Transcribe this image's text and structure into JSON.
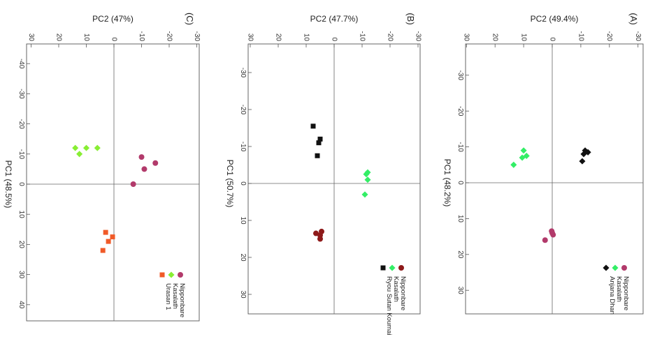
{
  "figure": {
    "panels": [
      {
        "panel_label": "(A)",
        "xlabel": "PC1 (48.2%)",
        "ylabel": "PC2 (49.4%)",
        "x_ticks": [
          -30,
          -20,
          -10,
          0,
          10,
          20,
          30
        ],
        "y_ticks": [
          -30,
          -20,
          -10,
          0,
          10,
          20,
          30
        ],
        "legend": [
          {
            "label": "Nipponbare",
            "color": "#b23a6b",
            "marker": "circle"
          },
          {
            "label": "Kasalath",
            "color": "#33ee66",
            "marker": "diamond"
          },
          {
            "label": "Anjana Dhan",
            "color": "#111111",
            "marker": "diamond"
          }
        ]
      },
      {
        "panel_label": "(B)",
        "xlabel": "PC1 (50.7%)",
        "ylabel": "PC2 (47.7%)",
        "x_ticks": [
          -30,
          -20,
          -10,
          0,
          10,
          20,
          30
        ],
        "y_ticks": [
          -30,
          -20,
          -10,
          0,
          10,
          20,
          30
        ],
        "legend": [
          {
            "label": "Nipponbare",
            "color": "#8e1a1a",
            "marker": "circle"
          },
          {
            "label": "Kasalath",
            "color": "#33ee66",
            "marker": "diamond"
          },
          {
            "label": "Ryou Sutan Koumai",
            "color": "#111111",
            "marker": "square"
          }
        ]
      },
      {
        "panel_label": "(C)",
        "xlabel": "PC1 (48.5%)",
        "ylabel": "PC2 (47%)",
        "x_ticks": [
          -40,
          -30,
          -20,
          -10,
          0,
          10,
          20,
          30,
          40
        ],
        "y_ticks": [
          -30,
          -20,
          -10,
          0,
          10,
          20,
          30
        ],
        "legend": [
          {
            "label": "Nipponbare",
            "color": "#b23a6b",
            "marker": "circle"
          },
          {
            "label": "Kasalath",
            "color": "#88ee33",
            "marker": "diamond"
          },
          {
            "label": "Urasan 1",
            "color": "#f05a28",
            "marker": "square"
          }
        ]
      }
    ]
  },
  "chart_data": [
    {
      "type": "scatter",
      "panel": "(A)",
      "xlabel": "PC1 (48.2%)",
      "ylabel": "PC2 (49.4%)",
      "xlim": [
        -40,
        40
      ],
      "ylim": [
        -33,
        33
      ],
      "x_ticks": [
        -30,
        -20,
        -10,
        0,
        10,
        20,
        30
      ],
      "y_ticks": [
        -30,
        -20,
        -10,
        0,
        10,
        20,
        30
      ],
      "orientation": "rotated 90° clockwise (PC1 increases downward, PC2 increases to the left)",
      "grid": false,
      "legend_position": "bottom-left",
      "series": [
        {
          "name": "Nipponbare",
          "marker": "circle",
          "color": "#b23a6b",
          "points": [
            [
              14,
              0
            ],
            [
              14.5,
              -0.3
            ],
            [
              13.5,
              0.2
            ],
            [
              16,
              2.5
            ]
          ]
        },
        {
          "name": "Kasalath",
          "marker": "diamond",
          "color": "#33ee66",
          "points": [
            [
              -9,
              10
            ],
            [
              -7,
              10.5
            ],
            [
              -7.5,
              9
            ],
            [
              -5,
              13.5
            ]
          ]
        },
        {
          "name": "Anjana Dhan",
          "marker": "diamond",
          "color": "#111111",
          "points": [
            [
              -9,
              -11.5
            ],
            [
              -8.5,
              -12.5
            ],
            [
              -8,
              -11
            ],
            [
              -6,
              -10.5
            ]
          ]
        }
      ]
    },
    {
      "type": "scatter",
      "panel": "(B)",
      "xlabel": "PC1 (50.7%)",
      "ylabel": "PC2 (47.7%)",
      "xlim": [
        -40,
        40
      ],
      "ylim": [
        -30,
        30
      ],
      "x_ticks": [
        -30,
        -20,
        -10,
        0,
        10,
        20,
        30
      ],
      "y_ticks": [
        -30,
        -20,
        -10,
        0,
        10,
        20,
        30
      ],
      "orientation": "rotated 90° clockwise (PC1 increases downward, PC2 increases to the left)",
      "grid": false,
      "legend_position": "bottom-left",
      "series": [
        {
          "name": "Nipponbare",
          "marker": "circle",
          "color": "#8e1a1a",
          "points": [
            [
              13.5,
              6.5
            ],
            [
              14,
              5
            ],
            [
              13,
              4.5
            ],
            [
              15,
              5
            ]
          ]
        },
        {
          "name": "Kasalath",
          "marker": "diamond",
          "color": "#33ee66",
          "points": [
            [
              -3,
              -12
            ],
            [
              -2.5,
              -11.5
            ],
            [
              -1,
              -12
            ],
            [
              3,
              -11
            ]
          ]
        },
        {
          "name": "Ryou Sutan Koumai",
          "marker": "square",
          "color": "#111111",
          "points": [
            [
              -15.5,
              7.5
            ],
            [
              -12,
              5
            ],
            [
              -11,
              5.5
            ],
            [
              -7.5,
              6
            ]
          ]
        }
      ]
    },
    {
      "type": "scatter",
      "panel": "(C)",
      "xlabel": "PC1 (48.5%)",
      "ylabel": "PC2 (47%)",
      "xlim": [
        -44,
        44
      ],
      "ylim": [
        -31,
        31
      ],
      "x_ticks": [
        -40,
        -30,
        -20,
        -10,
        0,
        10,
        20,
        30,
        40
      ],
      "y_ticks": [
        -30,
        -20,
        -10,
        0,
        10,
        20,
        30
      ],
      "orientation": "rotated 90° clockwise (PC1 increases downward, PC2 increases to the left)",
      "grid": false,
      "legend_position": "bottom-left",
      "series": [
        {
          "name": "Nipponbare",
          "marker": "circle",
          "color": "#b23a6b",
          "points": [
            [
              -9,
              -10
            ],
            [
              -5,
              -11
            ],
            [
              -7,
              -15
            ],
            [
              0,
              -7
            ]
          ]
        },
        {
          "name": "Kasalath",
          "marker": "diamond",
          "color": "#88ee33",
          "points": [
            [
              -12,
              14
            ],
            [
              -10,
              12.5
            ],
            [
              -12,
              10
            ],
            [
              -12,
              6
            ]
          ]
        },
        {
          "name": "Urasan 1",
          "marker": "square",
          "color": "#f05a28",
          "points": [
            [
              16,
              3
            ],
            [
              17.5,
              0.5
            ],
            [
              19,
              2
            ],
            [
              22,
              4
            ]
          ]
        }
      ]
    }
  ]
}
